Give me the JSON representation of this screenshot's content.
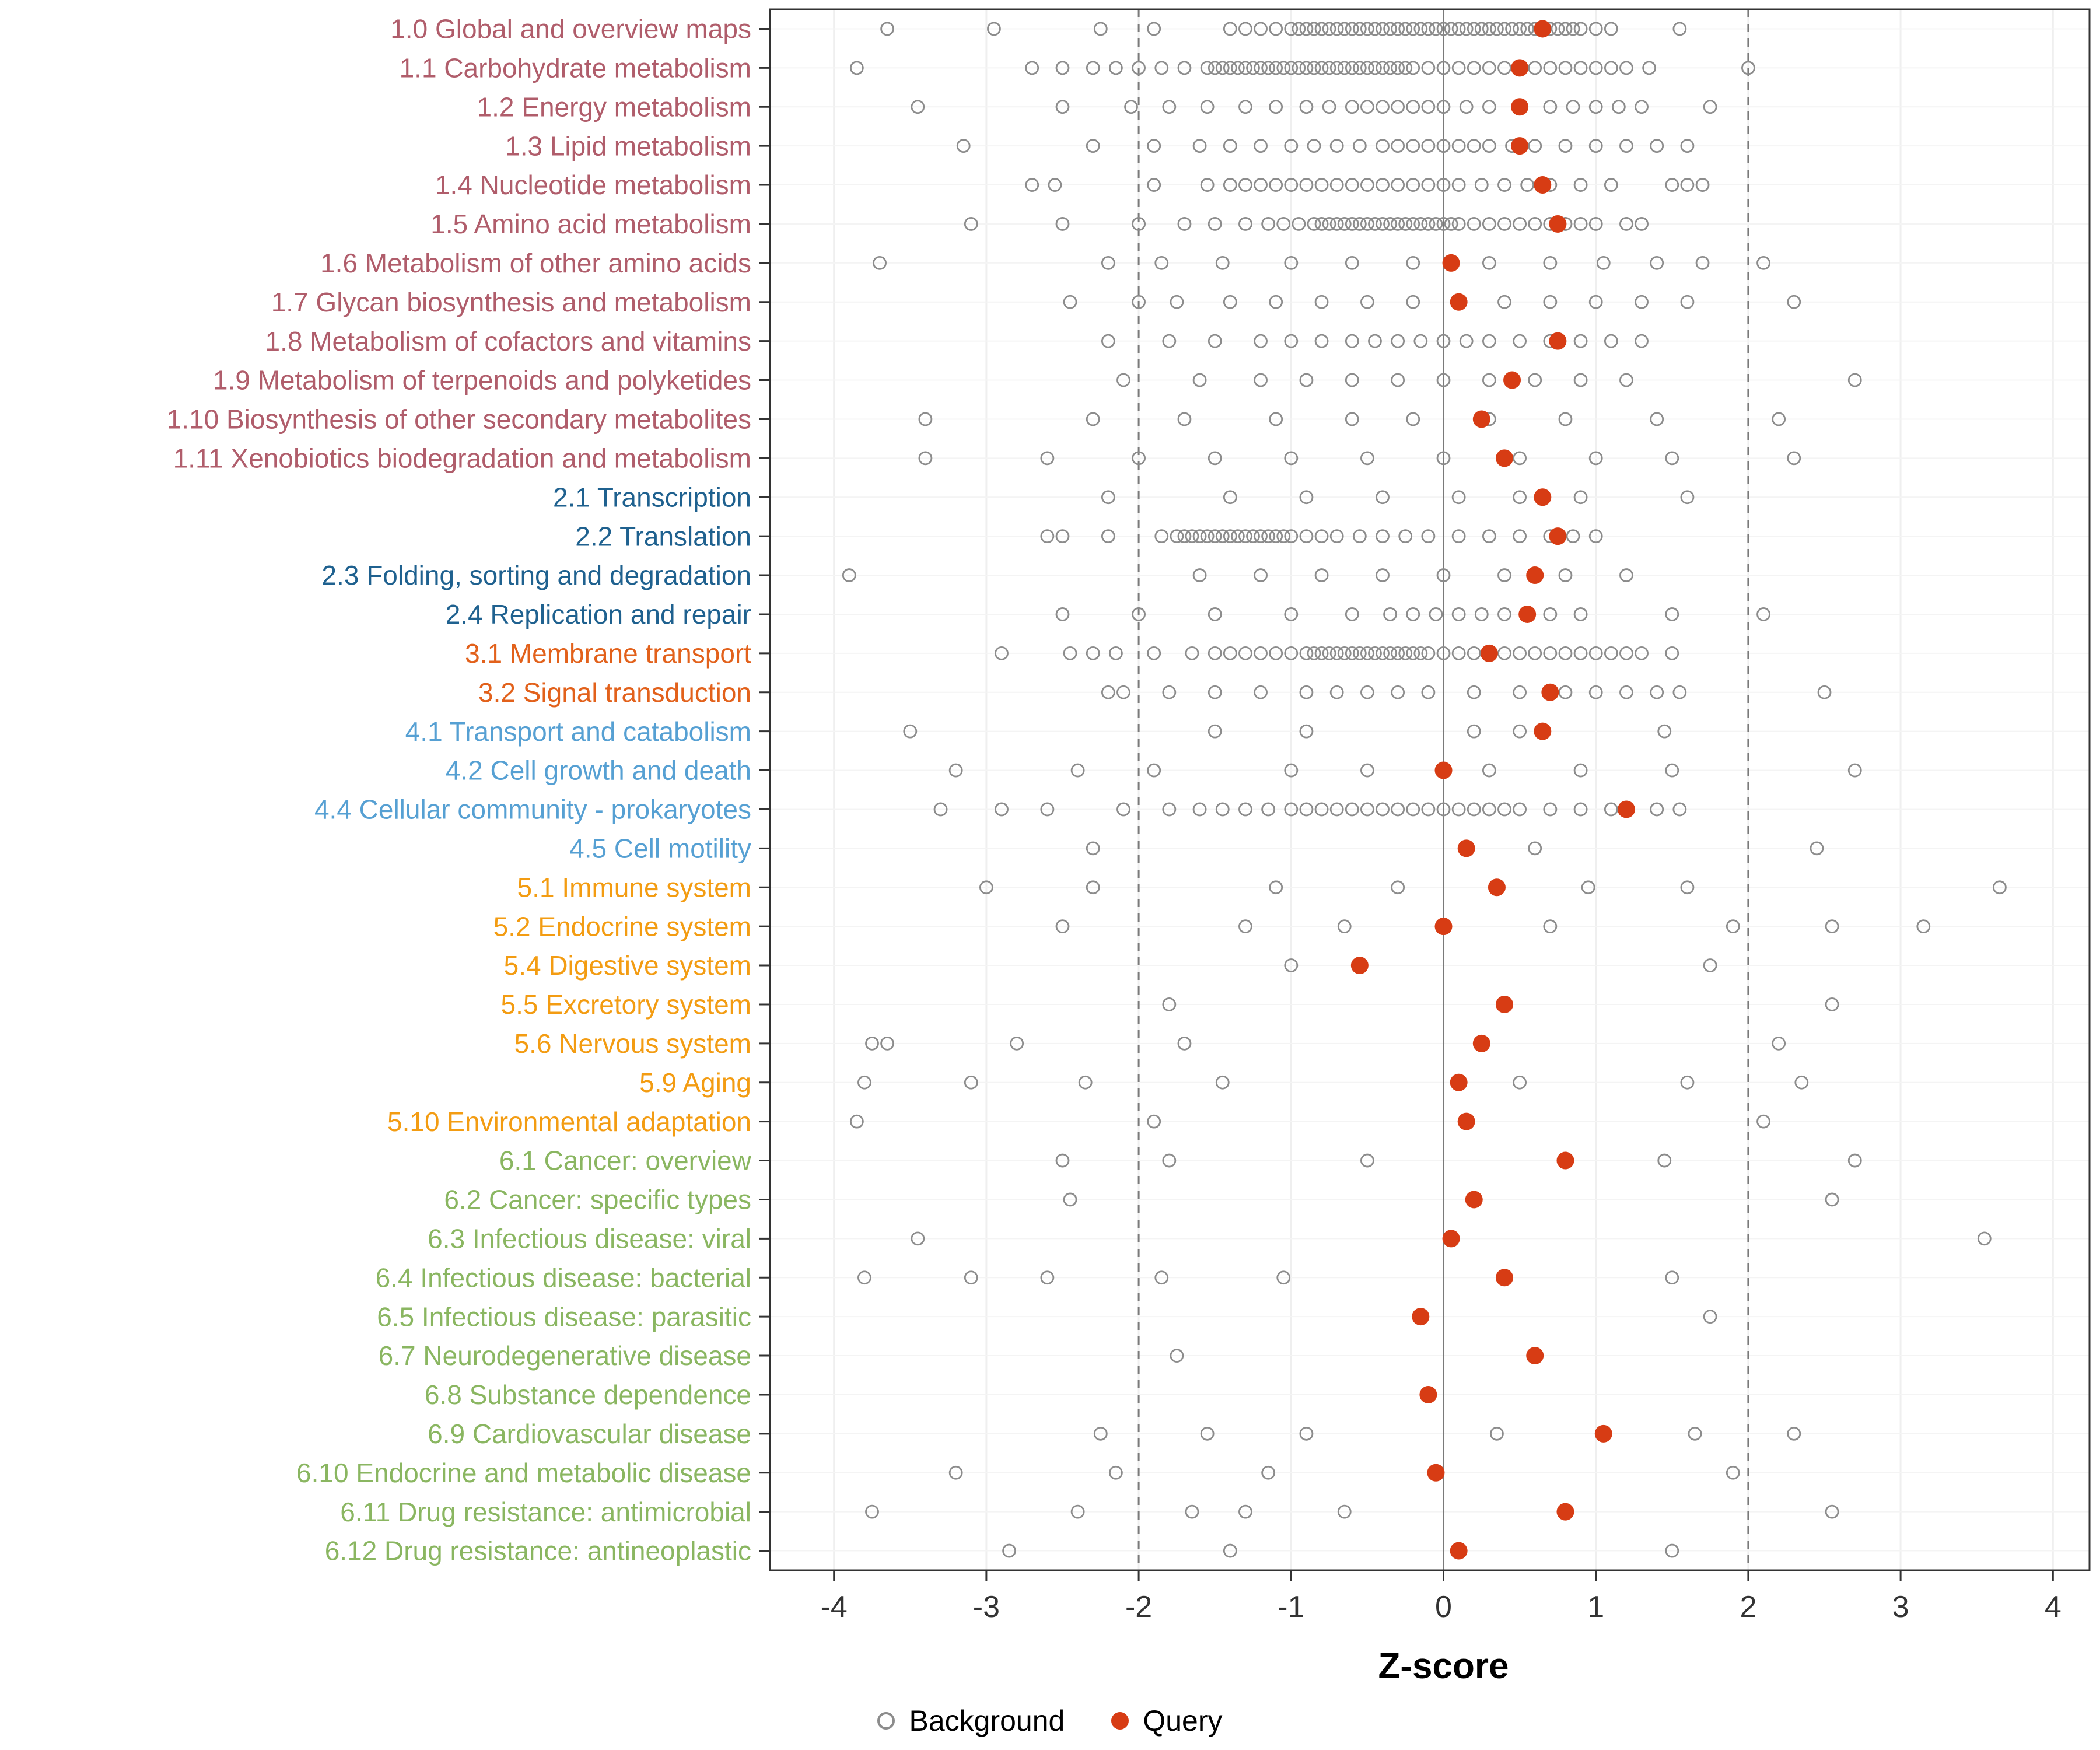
{
  "chart_data": {
    "type": "scatter",
    "title": "",
    "xlabel": "Z-score",
    "x_ticks": [
      -4,
      -3,
      -2,
      -1,
      0,
      1,
      2,
      3,
      4
    ],
    "xlim": [
      -4.42,
      4.24
    ],
    "grid": true,
    "legend_position": "bottom",
    "reference_lines": {
      "solid": [
        0
      ],
      "dashed": [
        -2,
        2
      ]
    },
    "legend": {
      "background_label": "Background",
      "query_label": "Query"
    },
    "point_colors": {
      "query": "#D73C14",
      "background_stroke": "#8C8C8C"
    },
    "group_colors": {
      "1": "#B05D6B",
      "2": "#1F618F",
      "3": "#E2611B",
      "4": "#56A0D3",
      "5": "#F39C12",
      "6": "#8AB661"
    },
    "categories": [
      {
        "label": "1.0 Global and overview maps",
        "group": "1",
        "query": 0.65,
        "background": [
          -3.65,
          -2.95,
          -2.25,
          -1.9,
          -1.4,
          -1.3,
          -1.2,
          -1.1,
          -1.0,
          -0.95,
          -0.9,
          -0.85,
          -0.8,
          -0.75,
          -0.7,
          -0.65,
          -0.6,
          -0.55,
          -0.5,
          -0.45,
          -0.4,
          -0.35,
          -0.3,
          -0.25,
          -0.2,
          -0.15,
          -0.1,
          -0.05,
          0,
          0.05,
          0.1,
          0.15,
          0.2,
          0.25,
          0.3,
          0.35,
          0.4,
          0.45,
          0.5,
          0.55,
          0.6,
          0.7,
          0.75,
          0.8,
          0.85,
          0.9,
          1.0,
          1.1,
          1.55
        ]
      },
      {
        "label": "1.1 Carbohydrate metabolism",
        "group": "1",
        "query": 0.5,
        "background": [
          -3.85,
          -2.7,
          -2.5,
          -2.3,
          -2.15,
          -2.0,
          -1.85,
          -1.7,
          -1.55,
          -1.5,
          -1.45,
          -1.4,
          -1.35,
          -1.3,
          -1.25,
          -1.2,
          -1.15,
          -1.1,
          -1.05,
          -1.0,
          -0.95,
          -0.9,
          -0.85,
          -0.8,
          -0.75,
          -0.7,
          -0.65,
          -0.6,
          -0.55,
          -0.5,
          -0.45,
          -0.4,
          -0.35,
          -0.3,
          -0.25,
          -0.2,
          -0.1,
          0,
          0.1,
          0.2,
          0.3,
          0.4,
          0.5,
          0.6,
          0.7,
          0.8,
          0.9,
          1.0,
          1.1,
          1.2,
          1.35,
          2.0
        ]
      },
      {
        "label": "1.2 Energy metabolism",
        "group": "1",
        "query": 0.5,
        "background": [
          -3.45,
          -2.5,
          -2.05,
          -1.8,
          -1.55,
          -1.3,
          -1.1,
          -0.9,
          -0.75,
          -0.6,
          -0.5,
          -0.4,
          -0.3,
          -0.2,
          -0.1,
          0,
          0.15,
          0.3,
          0.5,
          0.7,
          0.85,
          1.0,
          1.15,
          1.3,
          1.75
        ]
      },
      {
        "label": "1.3 Lipid metabolism",
        "group": "1",
        "query": 0.5,
        "background": [
          -3.15,
          -2.3,
          -1.9,
          -1.6,
          -1.4,
          -1.2,
          -1.0,
          -0.85,
          -0.7,
          -0.55,
          -0.4,
          -0.3,
          -0.2,
          -0.1,
          0,
          0.1,
          0.2,
          0.3,
          0.45,
          0.6,
          0.8,
          1.0,
          1.2,
          1.4,
          1.6
        ]
      },
      {
        "label": "1.4 Nucleotide metabolism",
        "group": "1",
        "query": 0.65,
        "background": [
          -2.7,
          -2.55,
          -1.9,
          -1.55,
          -1.4,
          -1.3,
          -1.2,
          -1.1,
          -1.0,
          -0.9,
          -0.8,
          -0.7,
          -0.6,
          -0.5,
          -0.4,
          -0.3,
          -0.2,
          -0.1,
          0,
          0.1,
          0.25,
          0.4,
          0.55,
          0.7,
          0.9,
          1.1,
          1.5,
          1.6,
          1.7
        ]
      },
      {
        "label": "1.5 Amino acid metabolism",
        "group": "1",
        "query": 0.75,
        "background": [
          -3.1,
          -2.5,
          -2.0,
          -1.7,
          -1.5,
          -1.3,
          -1.15,
          -1.05,
          -0.95,
          -0.85,
          -0.8,
          -0.75,
          -0.7,
          -0.65,
          -0.6,
          -0.55,
          -0.5,
          -0.45,
          -0.4,
          -0.35,
          -0.3,
          -0.25,
          -0.2,
          -0.15,
          -0.1,
          -0.05,
          0,
          0.05,
          0.1,
          0.2,
          0.3,
          0.4,
          0.5,
          0.6,
          0.7,
          0.8,
          0.9,
          1.0,
          1.2,
          1.3
        ]
      },
      {
        "label": "1.6 Metabolism of other amino acids",
        "group": "1",
        "query": 0.05,
        "background": [
          -3.7,
          -2.2,
          -1.85,
          -1.45,
          -1.0,
          -0.6,
          -0.2,
          0.3,
          0.7,
          1.05,
          1.4,
          1.7,
          2.1
        ]
      },
      {
        "label": "1.7 Glycan biosynthesis and metabolism",
        "group": "1",
        "query": 0.1,
        "background": [
          -2.45,
          -2.0,
          -1.75,
          -1.4,
          -1.1,
          -0.8,
          -0.5,
          -0.2,
          0.1,
          0.4,
          0.7,
          1.0,
          1.3,
          1.6,
          2.3
        ]
      },
      {
        "label": "1.8 Metabolism of cofactors and vitamins",
        "group": "1",
        "query": 0.75,
        "background": [
          -2.2,
          -1.8,
          -1.5,
          -1.2,
          -1.0,
          -0.8,
          -0.6,
          -0.45,
          -0.3,
          -0.15,
          0,
          0.15,
          0.3,
          0.5,
          0.7,
          0.9,
          1.1,
          1.3
        ]
      },
      {
        "label": "1.9 Metabolism of terpenoids and polyketides",
        "group": "1",
        "query": 0.45,
        "background": [
          -2.1,
          -1.6,
          -1.2,
          -0.9,
          -0.6,
          -0.3,
          0,
          0.3,
          0.6,
          0.9,
          1.2,
          2.7
        ]
      },
      {
        "label": "1.10 Biosynthesis of other secondary metabolites",
        "group": "1",
        "query": 0.25,
        "background": [
          -3.4,
          -2.3,
          -1.7,
          -1.1,
          -0.6,
          -0.2,
          0.3,
          0.8,
          1.4,
          2.2
        ]
      },
      {
        "label": "1.11 Xenobiotics biodegradation and metabolism",
        "group": "1",
        "query": 0.4,
        "background": [
          -3.4,
          -2.6,
          -2.0,
          -1.5,
          -1.0,
          -0.5,
          0,
          0.5,
          1.0,
          1.5,
          2.3
        ]
      },
      {
        "label": "2.1 Transcription",
        "group": "2",
        "query": 0.65,
        "background": [
          -2.2,
          -1.4,
          -0.9,
          -0.4,
          0.1,
          0.5,
          0.9,
          1.6
        ]
      },
      {
        "label": "2.2 Translation",
        "group": "2",
        "query": 0.75,
        "background": [
          -2.6,
          -2.5,
          -2.2,
          -1.85,
          -1.75,
          -1.7,
          -1.65,
          -1.6,
          -1.55,
          -1.5,
          -1.45,
          -1.4,
          -1.35,
          -1.3,
          -1.25,
          -1.2,
          -1.15,
          -1.1,
          -1.05,
          -1.0,
          -0.9,
          -0.8,
          -0.7,
          -0.55,
          -0.4,
          -0.25,
          -0.1,
          0.1,
          0.3,
          0.5,
          0.7,
          0.85,
          1.0
        ]
      },
      {
        "label": "2.3 Folding, sorting and degradation",
        "group": "2",
        "query": 0.6,
        "background": [
          -3.9,
          -1.6,
          -1.2,
          -0.8,
          -0.4,
          0,
          0.4,
          0.8,
          1.2
        ]
      },
      {
        "label": "2.4 Replication and repair",
        "group": "2",
        "query": 0.55,
        "background": [
          -2.5,
          -2.0,
          -1.5,
          -1.0,
          -0.6,
          -0.35,
          -0.2,
          -0.05,
          0.1,
          0.25,
          0.4,
          0.55,
          0.7,
          0.9,
          1.5,
          2.1
        ]
      },
      {
        "label": "3.1 Membrane transport",
        "group": "3",
        "query": 0.3,
        "background": [
          -2.9,
          -2.45,
          -2.3,
          -2.15,
          -1.9,
          -1.65,
          -1.5,
          -1.4,
          -1.3,
          -1.2,
          -1.1,
          -1.0,
          -0.9,
          -0.85,
          -0.8,
          -0.75,
          -0.7,
          -0.65,
          -0.6,
          -0.55,
          -0.5,
          -0.45,
          -0.4,
          -0.35,
          -0.3,
          -0.25,
          -0.2,
          -0.15,
          -0.1,
          0,
          0.1,
          0.2,
          0.3,
          0.4,
          0.5,
          0.6,
          0.7,
          0.8,
          0.9,
          1.0,
          1.1,
          1.2,
          1.3,
          1.5
        ]
      },
      {
        "label": "3.2 Signal transduction",
        "group": "3",
        "query": 0.7,
        "background": [
          -2.2,
          -2.1,
          -1.8,
          -1.5,
          -1.2,
          -0.9,
          -0.7,
          -0.5,
          -0.3,
          -0.1,
          0.2,
          0.5,
          0.8,
          1.0,
          1.2,
          1.4,
          1.55,
          2.5
        ]
      },
      {
        "label": "4.1 Transport and catabolism",
        "group": "4",
        "query": 0.65,
        "background": [
          -3.5,
          -1.5,
          -0.9,
          0.2,
          0.5,
          1.45
        ]
      },
      {
        "label": "4.2 Cell growth and death",
        "group": "4",
        "query": 0.0,
        "background": [
          -3.2,
          -2.4,
          -1.9,
          -1.0,
          -0.5,
          0.3,
          0.9,
          1.5,
          2.7
        ]
      },
      {
        "label": "4.4 Cellular community - prokaryotes",
        "group": "4",
        "query": 1.2,
        "background": [
          -3.3,
          -2.9,
          -2.6,
          -2.1,
          -1.8,
          -1.6,
          -1.45,
          -1.3,
          -1.15,
          -1.0,
          -0.9,
          -0.8,
          -0.7,
          -0.6,
          -0.5,
          -0.4,
          -0.3,
          -0.2,
          -0.1,
          0,
          0.1,
          0.2,
          0.3,
          0.4,
          0.5,
          0.7,
          0.9,
          1.1,
          1.4,
          1.55
        ]
      },
      {
        "label": "4.5 Cell motility",
        "group": "4",
        "query": 0.15,
        "background": [
          -2.3,
          0.6,
          2.45
        ]
      },
      {
        "label": "5.1 Immune system",
        "group": "5",
        "query": 0.35,
        "background": [
          -3.0,
          -2.3,
          -1.1,
          -0.3,
          0.95,
          1.6,
          3.65
        ]
      },
      {
        "label": "5.2 Endocrine system",
        "group": "5",
        "query": 0.0,
        "background": [
          -2.5,
          -1.3,
          -0.65,
          0.7,
          1.9,
          2.55,
          3.15
        ]
      },
      {
        "label": "5.4 Digestive system",
        "group": "5",
        "query": -0.55,
        "background": [
          -1.0,
          1.75
        ]
      },
      {
        "label": "5.5 Excretory system",
        "group": "5",
        "query": 0.4,
        "background": [
          -1.8,
          2.55
        ]
      },
      {
        "label": "5.6 Nervous system",
        "group": "5",
        "query": 0.25,
        "background": [
          -3.75,
          -3.65,
          -2.8,
          -1.7,
          2.2
        ]
      },
      {
        "label": "5.9 Aging",
        "group": "5",
        "query": 0.1,
        "background": [
          -3.8,
          -3.1,
          -2.35,
          -1.45,
          0.5,
          1.6,
          2.35
        ]
      },
      {
        "label": "5.10 Environmental adaptation",
        "group": "5",
        "query": 0.15,
        "background": [
          -3.85,
          -1.9,
          2.1
        ]
      },
      {
        "label": "6.1 Cancer: overview",
        "group": "6",
        "query": 0.8,
        "background": [
          -2.5,
          -1.8,
          -0.5,
          1.45,
          2.7
        ]
      },
      {
        "label": "6.2 Cancer: specific types",
        "group": "6",
        "query": 0.2,
        "background": [
          -2.45,
          2.55
        ]
      },
      {
        "label": "6.3 Infectious disease: viral",
        "group": "6",
        "query": 0.05,
        "background": [
          -3.45,
          3.55
        ]
      },
      {
        "label": "6.4 Infectious disease: bacterial",
        "group": "6",
        "query": 0.4,
        "background": [
          -3.8,
          -3.1,
          -2.6,
          -1.85,
          -1.05,
          1.5
        ]
      },
      {
        "label": "6.5 Infectious disease: parasitic",
        "group": "6",
        "query": -0.15,
        "background": [
          1.75
        ]
      },
      {
        "label": "6.7 Neurodegenerative disease",
        "group": "6",
        "query": 0.6,
        "background": [
          -1.75
        ]
      },
      {
        "label": "6.8 Substance dependence",
        "group": "6",
        "query": -0.1,
        "background": []
      },
      {
        "label": "6.9 Cardiovascular disease",
        "group": "6",
        "query": 1.05,
        "background": [
          -2.25,
          -1.55,
          -0.9,
          0.35,
          1.65,
          2.3
        ]
      },
      {
        "label": "6.10 Endocrine and metabolic disease",
        "group": "6",
        "query": -0.05,
        "background": [
          -3.2,
          -2.15,
          -1.15,
          1.9
        ]
      },
      {
        "label": "6.11 Drug resistance: antimicrobial",
        "group": "6",
        "query": 0.8,
        "background": [
          -3.75,
          -2.4,
          -1.65,
          -1.3,
          -0.65,
          2.55
        ]
      },
      {
        "label": "6.12 Drug resistance: antineoplastic",
        "group": "6",
        "query": 0.1,
        "background": [
          -2.85,
          -1.4,
          1.5
        ]
      }
    ]
  }
}
